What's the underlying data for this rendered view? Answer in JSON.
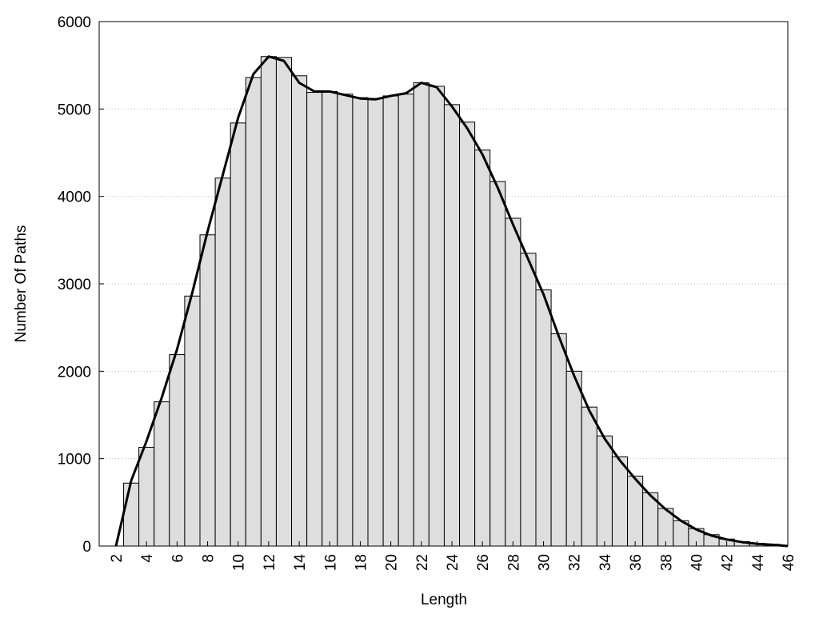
{
  "chart_data": {
    "type": "histogram",
    "xlabel": "Length",
    "ylabel": "Number Of Paths",
    "bins": [
      2.5,
      3.5,
      4.5,
      5.5,
      6.5,
      7.5,
      8.5,
      9.5,
      10.5,
      11.5,
      12.5,
      13.5,
      14.5,
      15.5,
      16.5,
      17.5,
      18.5,
      19.5,
      20.5,
      21.5,
      22.5,
      23.5,
      24.5,
      25.5,
      26.5,
      27.5,
      28.5,
      29.5,
      30.5,
      31.5,
      32.5,
      33.5,
      34.5,
      35.5,
      36.5,
      37.5,
      38.5,
      39.5,
      40.5,
      41.5,
      42.5,
      43.5,
      44.5,
      45.5
    ],
    "values": [
      720,
      1130,
      1650,
      2190,
      2860,
      3560,
      4210,
      4840,
      5360,
      5600,
      5590,
      5380,
      5190,
      5200,
      5170,
      5130,
      5120,
      5150,
      5170,
      5300,
      5260,
      5050,
      4850,
      4530,
      4170,
      3750,
      3350,
      2930,
      2430,
      2000,
      1590,
      1260,
      1020,
      800,
      610,
      430,
      290,
      200,
      130,
      80,
      50,
      30,
      20
    ],
    "color": "#dedede",
    "line": {
      "color": "#000000",
      "x": [
        2,
        3,
        4,
        5,
        6,
        7,
        8,
        9,
        10,
        11,
        12,
        13,
        14,
        15,
        16,
        17,
        18,
        19,
        20,
        21,
        22,
        23,
        24,
        25,
        26,
        27,
        28,
        29,
        30,
        31,
        32,
        33,
        34,
        35,
        36,
        37,
        38,
        39,
        40,
        41,
        42,
        43,
        44,
        45,
        46
      ],
      "values": [
        0,
        750,
        1200,
        1700,
        2250,
        2900,
        3600,
        4250,
        4900,
        5400,
        5600,
        5550,
        5300,
        5200,
        5200,
        5160,
        5120,
        5110,
        5150,
        5180,
        5300,
        5250,
        5030,
        4780,
        4480,
        4100,
        3680,
        3280,
        2880,
        2400,
        1950,
        1550,
        1230,
        980,
        770,
        580,
        420,
        290,
        190,
        120,
        75,
        45,
        25,
        15,
        0
      ]
    },
    "xlim": [
      0.9,
      46
    ],
    "ylim": [
      0,
      6000
    ],
    "xticks": [
      2,
      4,
      6,
      8,
      10,
      12,
      14,
      16,
      18,
      20,
      22,
      24,
      26,
      28,
      30,
      32,
      34,
      36,
      38,
      40,
      42,
      44,
      46
    ],
    "yticks": [
      0,
      1000,
      2000,
      3000,
      4000,
      5000,
      6000
    ],
    "grid": true
  }
}
